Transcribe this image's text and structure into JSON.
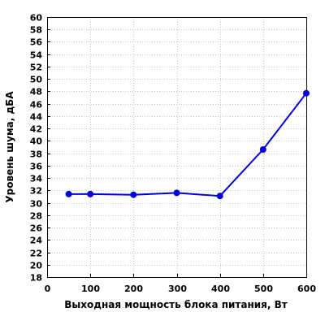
{
  "chart_data": {
    "type": "line",
    "title": "",
    "xlabel": "Выходная мощность блока питания, Вт",
    "ylabel": "Уровень шума, дБА",
    "xlim": [
      0,
      600
    ],
    "ylim": [
      18,
      60
    ],
    "xticks": [
      0,
      100,
      200,
      300,
      400,
      500,
      600
    ],
    "yticks": [
      18,
      20,
      22,
      24,
      26,
      28,
      30,
      32,
      34,
      36,
      38,
      40,
      42,
      44,
      46,
      48,
      50,
      52,
      54,
      56,
      58,
      60
    ],
    "grid": true,
    "series": [
      {
        "color": "#0000dd",
        "x": [
          50,
          100,
          200,
          300,
          400,
          500,
          600
        ],
        "y": [
          31.4,
          31.4,
          31.3,
          31.6,
          31.1,
          38.6,
          47.7
        ]
      }
    ]
  }
}
